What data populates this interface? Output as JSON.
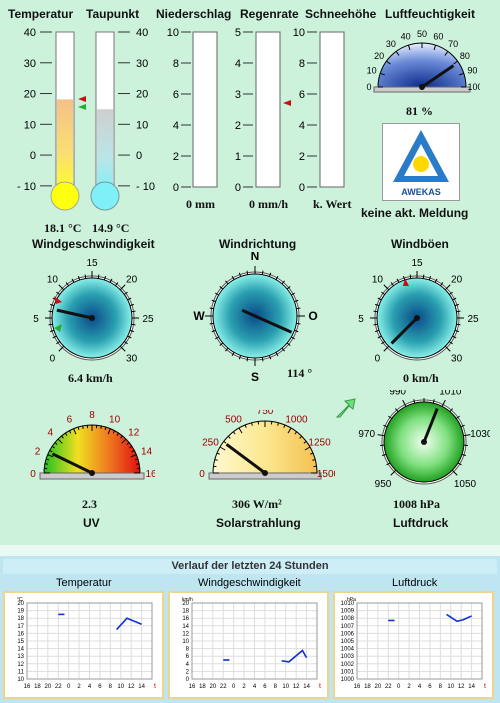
{
  "headers": {
    "temperatur": "Temperatur",
    "taupunkt": "Taupunkt",
    "niederschlag": "Niederschlag",
    "regenrate": "Regenrate",
    "schneehoehe": "Schneehöhe",
    "luftfeuchtigkeit": "Luftfeuchtigkeit"
  },
  "thermo_scale": [
    "40",
    "30",
    "20",
    "10",
    "0",
    "- 10"
  ],
  "temperature": {
    "value": 18.1,
    "label": "18.1 °C"
  },
  "dewpoint": {
    "value": 14.9,
    "label": "14.9 °C"
  },
  "precip_scale": [
    "10",
    "8",
    "6",
    "4",
    "2",
    "0"
  ],
  "rainrate_scale": [
    "5",
    "4",
    "3",
    "2",
    "1",
    "0"
  ],
  "snow_scale": [
    "10",
    "8",
    "6",
    "4",
    "2",
    "0"
  ],
  "niederschlag_value": "0 mm",
  "regenrate_value": "0 mm/h",
  "schnee_value": "k. Wert",
  "humidity": {
    "value": 81,
    "label": "81 %",
    "ticks": [
      "0",
      "10",
      "20",
      "30",
      "40",
      "50",
      "60",
      "70",
      "80",
      "90",
      "100"
    ]
  },
  "awekas": {
    "logo_text": "AWEKAS",
    "message": "keine akt. Meldung"
  },
  "wind_speed": {
    "title": "Windgeschwindigkeit",
    "label": "6.4 km/h",
    "ticks": [
      "0",
      "5",
      "10",
      "15",
      "20",
      "25",
      "30"
    ],
    "value": 6.4
  },
  "wind_dir": {
    "title": "Windrichtung",
    "label": "114 °",
    "N": "N",
    "O": "O",
    "S": "S",
    "W": "W",
    "value": 114
  },
  "wind_gust": {
    "title": "Windböen",
    "label": "0 km/h",
    "ticks": [
      "0",
      "5",
      "10",
      "15",
      "20",
      "25",
      "30"
    ],
    "value": 0
  },
  "uv": {
    "title": "UV",
    "label": "2.3",
    "ticks": [
      "0",
      "2",
      "4",
      "6",
      "8",
      "10",
      "12",
      "14",
      "16"
    ],
    "value": 2.3
  },
  "solar": {
    "title": "Solarstrahlung",
    "label": "306 W/m²",
    "ticks": [
      "0",
      "250",
      "500",
      "750",
      "1000",
      "1250",
      "1500"
    ],
    "value": 306
  },
  "pressure": {
    "title": "Luftdruck",
    "label": "1008 hPa",
    "ticks": [
      "950",
      "970",
      "990",
      "1010",
      "1030",
      "1050"
    ],
    "value": 1008
  },
  "history": {
    "title": "Verlauf der letzten 24 Stunden",
    "x_ticks": [
      "16",
      "18",
      "20",
      "22",
      "0",
      "2",
      "4",
      "6",
      "8",
      "10",
      "12",
      "14"
    ],
    "x_last": "t",
    "charts": [
      {
        "title": "Temperatur",
        "unit": "°C",
        "y_ticks": [
          "20",
          "19",
          "18",
          "17",
          "16",
          "15",
          "14",
          "13",
          "12",
          "11",
          "10"
        ]
      },
      {
        "title": "Windgeschwindigkeit",
        "unit": "km/h",
        "y_ticks": [
          "20",
          "18",
          "16",
          "14",
          "12",
          "10",
          "8",
          "6",
          "4",
          "2",
          "0"
        ]
      },
      {
        "title": "Luftdruck",
        "unit": "hPa",
        "y_ticks": [
          "1010",
          "1009",
          "1008",
          "1007",
          "1006",
          "1005",
          "1004",
          "1003",
          "1002",
          "1001",
          "1000"
        ]
      }
    ]
  }
}
